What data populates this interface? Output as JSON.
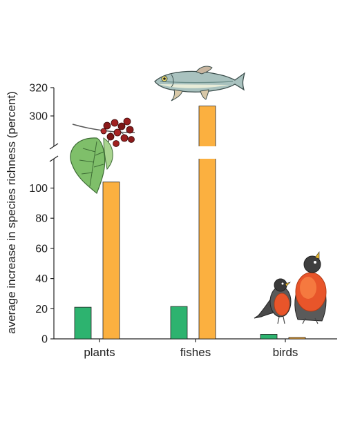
{
  "chart_data": {
    "type": "bar",
    "ylabel": "average increase in species richness (percent)",
    "categories": [
      "plants",
      "fishes",
      "birds"
    ],
    "series": [
      {
        "values": [
          21,
          21.5,
          3
        ],
        "color": "#2db36f"
      },
      {
        "values": [
          104,
          307,
          1
        ],
        "color": "#fbb040"
      }
    ],
    "axis_break": [
      110,
      290
    ],
    "yticks_lower": [
      0,
      20,
      40,
      60,
      80,
      100
    ],
    "yticks_upper": [
      300,
      320
    ],
    "ylim": [
      0,
      320
    ],
    "grid": false,
    "illustrations": [
      "hawthorn-sprig-icon",
      "fish-icon",
      "robin-icon"
    ]
  }
}
